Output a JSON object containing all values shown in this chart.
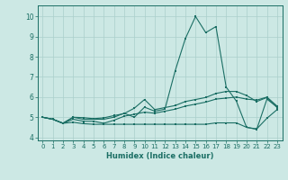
{
  "xlabel": "Humidex (Indice chaleur)",
  "xlim": [
    -0.5,
    23.5
  ],
  "ylim": [
    3.85,
    10.55
  ],
  "yticks": [
    4,
    5,
    6,
    7,
    8,
    9,
    10
  ],
  "xticks": [
    0,
    1,
    2,
    3,
    4,
    5,
    6,
    7,
    8,
    9,
    10,
    11,
    12,
    13,
    14,
    15,
    16,
    17,
    18,
    19,
    20,
    21,
    22,
    23
  ],
  "bg_color": "#cce8e4",
  "grid_color": "#aacfcb",
  "line_color": "#1a6e64",
  "line1": [
    5.0,
    4.9,
    4.7,
    5.0,
    4.9,
    4.9,
    4.9,
    5.0,
    5.2,
    5.0,
    5.5,
    5.3,
    5.4,
    7.3,
    8.9,
    10.0,
    9.2,
    9.5,
    6.5,
    5.8,
    4.5,
    4.4,
    5.9,
    5.5
  ],
  "line2": [
    5.0,
    4.9,
    4.7,
    4.9,
    4.8,
    4.8,
    4.7,
    4.85,
    5.05,
    5.15,
    5.25,
    5.2,
    5.3,
    5.4,
    5.55,
    5.65,
    5.75,
    5.9,
    5.95,
    6.0,
    5.9,
    5.85,
    6.0,
    5.55
  ],
  "line3": [
    5.0,
    4.9,
    4.7,
    4.75,
    4.68,
    4.65,
    4.65,
    4.65,
    4.65,
    4.65,
    4.65,
    4.65,
    4.65,
    4.65,
    4.65,
    4.65,
    4.65,
    4.72,
    4.72,
    4.72,
    4.5,
    4.42,
    4.95,
    5.38
  ],
  "line4": [
    5.0,
    4.9,
    4.7,
    5.0,
    4.98,
    4.93,
    4.97,
    5.08,
    5.18,
    5.45,
    5.88,
    5.38,
    5.48,
    5.58,
    5.78,
    5.88,
    5.98,
    6.18,
    6.28,
    6.28,
    6.08,
    5.78,
    5.98,
    5.48
  ]
}
